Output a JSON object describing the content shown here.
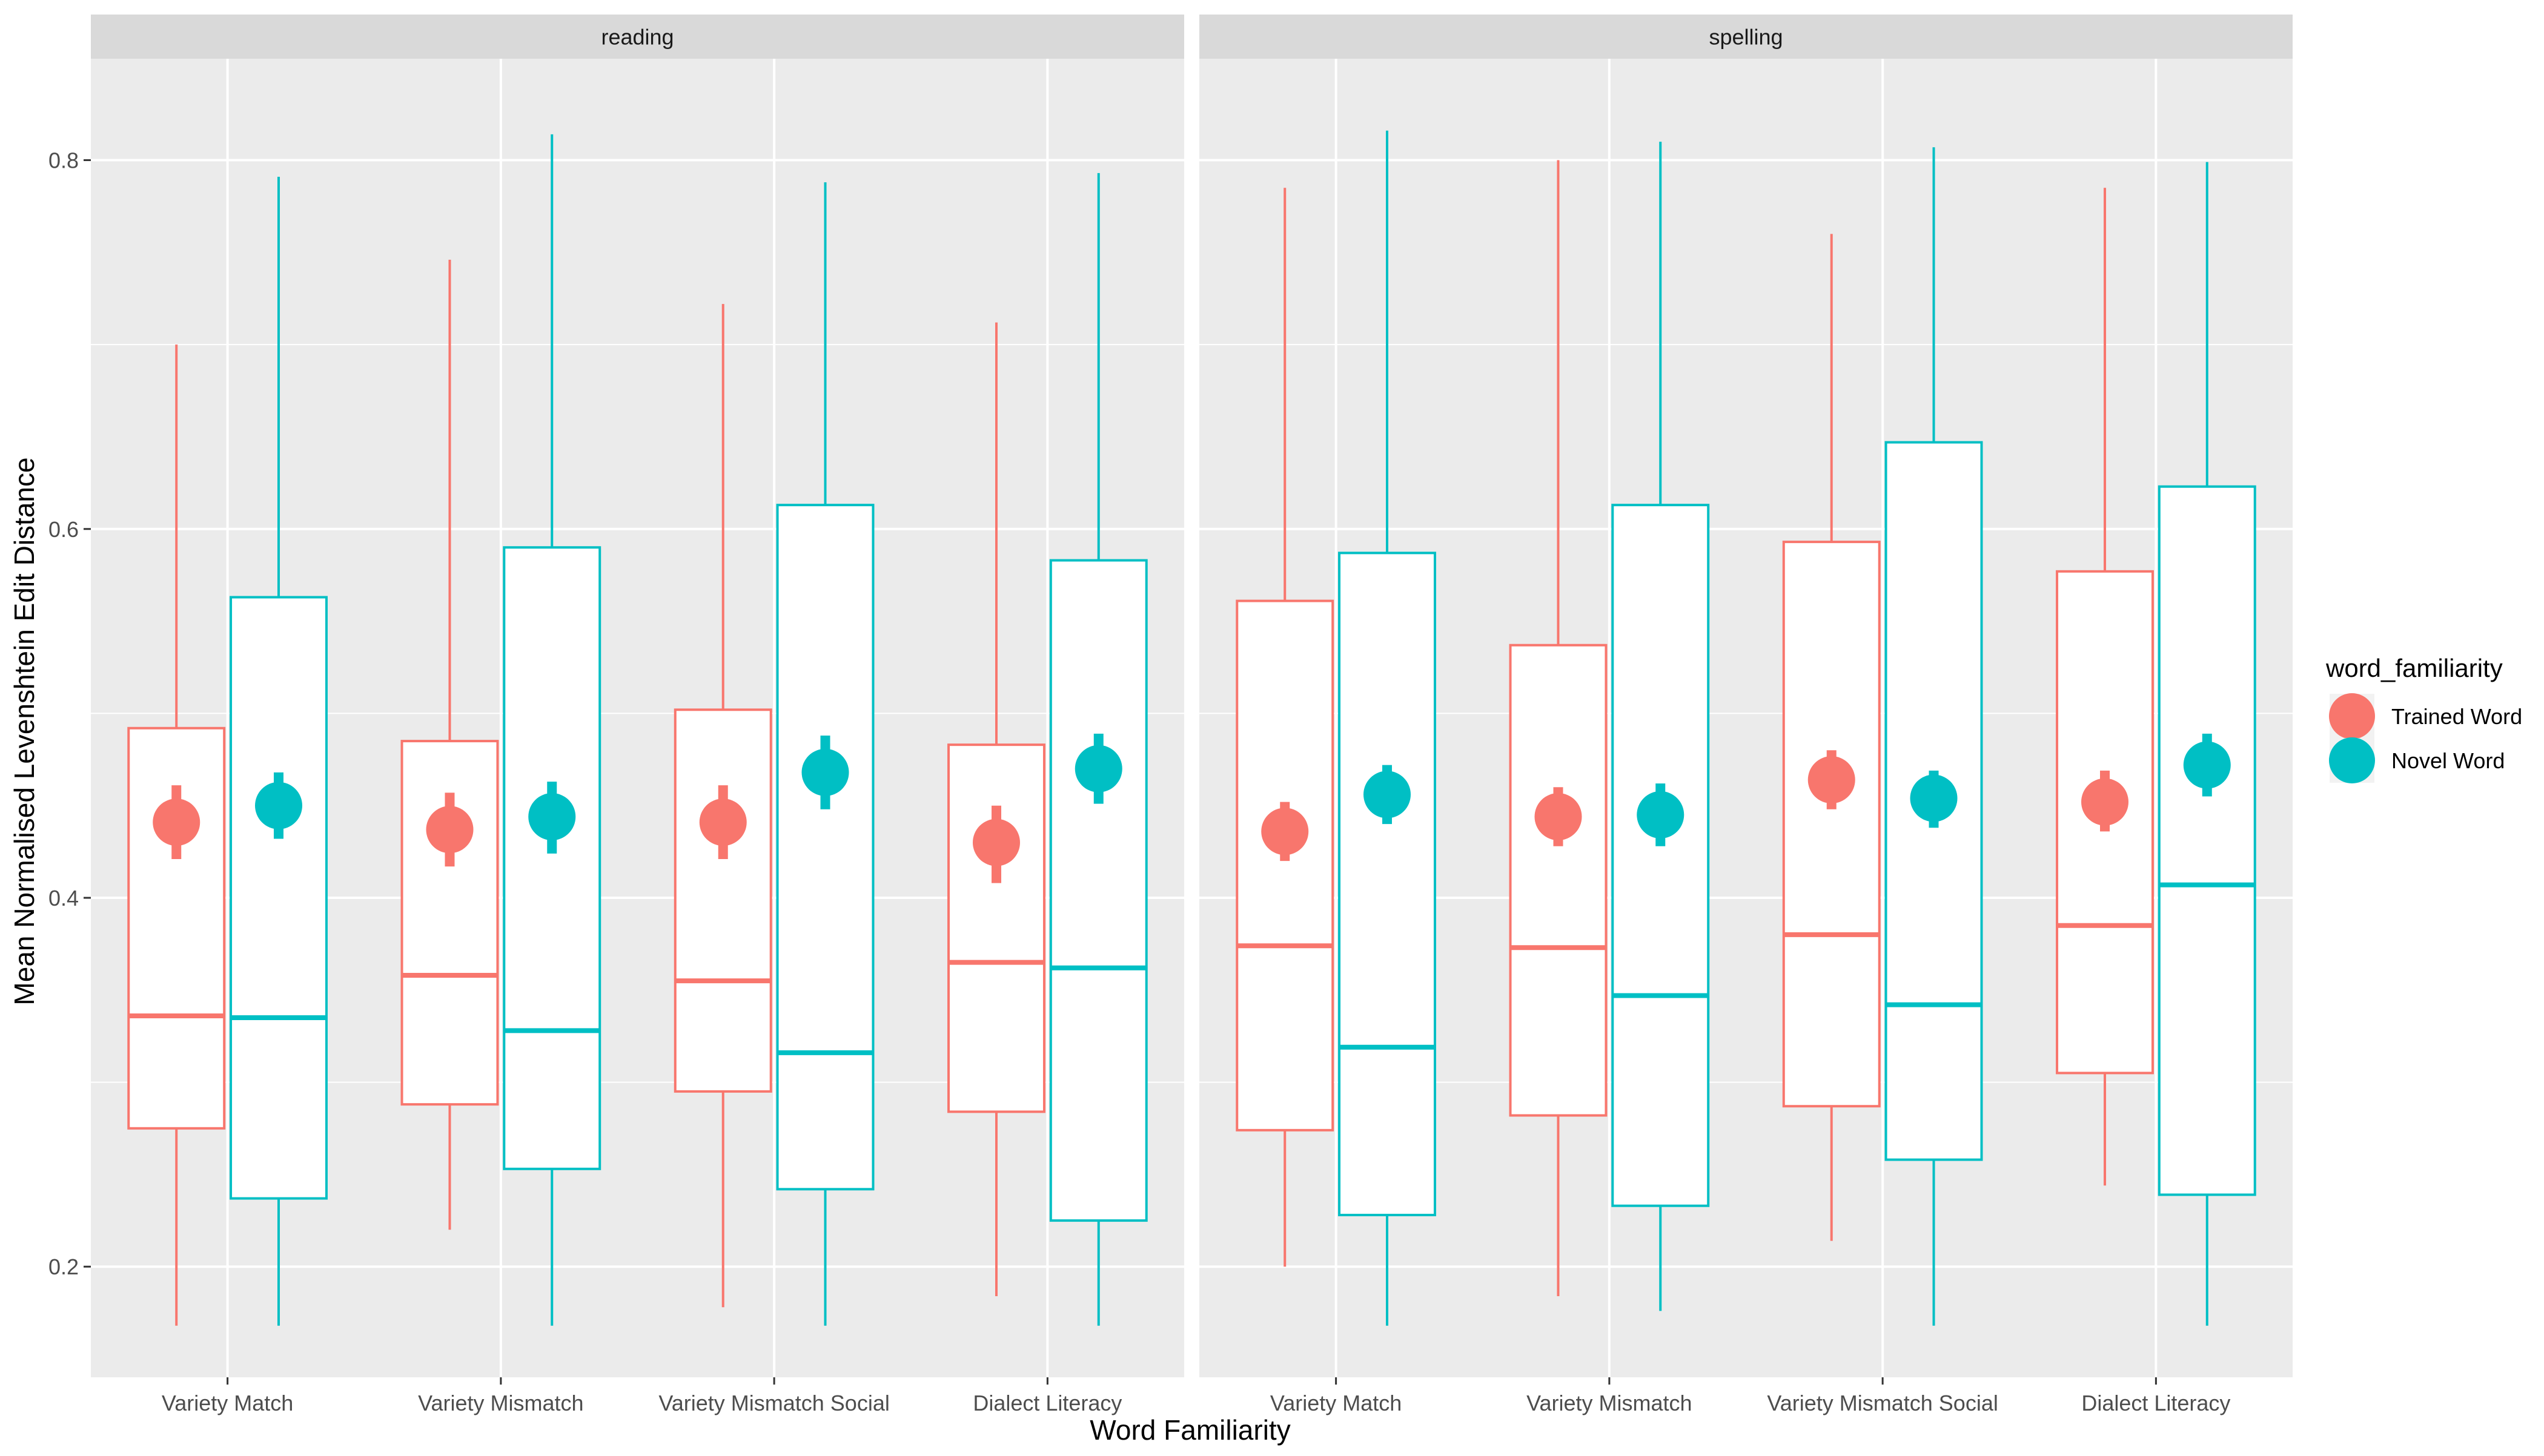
{
  "chart_data": {
    "type": "boxplot",
    "xlabel": "Word Familiarity",
    "ylabel": "Mean Normalised Levenshtein Edit Distance",
    "ylim": [
      0.14,
      0.855
    ],
    "yticks": [
      0.2,
      0.4,
      0.6,
      0.8
    ],
    "ytick_labels": [
      "0.2",
      "0.4",
      "0.6",
      "0.8"
    ],
    "grid": true,
    "facets": [
      "reading",
      "spelling"
    ],
    "categories": [
      "Variety Match",
      "Variety Mismatch",
      "Variety Mismatch Social",
      "Dialect Literacy"
    ],
    "legend": {
      "title": "word_familiarity",
      "position": "right",
      "entries": [
        {
          "name": "Trained Word",
          "color": "#F8766D"
        },
        {
          "name": "Novel Word",
          "color": "#00BFC4"
        }
      ]
    },
    "series": [
      {
        "name": "Trained Word",
        "color": "#F8766D",
        "panels": [
          {
            "facet": "reading",
            "boxes": [
              {
                "min": 0.168,
                "q1": 0.275,
                "median": 0.336,
                "q3": 0.492,
                "max": 0.7
              },
              {
                "min": 0.22,
                "q1": 0.288,
                "median": 0.358,
                "q3": 0.485,
                "max": 0.746
              },
              {
                "min": 0.178,
                "q1": 0.295,
                "median": 0.355,
                "q3": 0.502,
                "max": 0.722
              },
              {
                "min": 0.184,
                "q1": 0.284,
                "median": 0.365,
                "q3": 0.483,
                "max": 0.712
              }
            ],
            "means": [
              {
                "mean": 0.441,
                "lower": 0.421,
                "upper": 0.461
              },
              {
                "mean": 0.437,
                "lower": 0.417,
                "upper": 0.457
              },
              {
                "mean": 0.441,
                "lower": 0.421,
                "upper": 0.461
              },
              {
                "mean": 0.43,
                "lower": 0.408,
                "upper": 0.45
              }
            ]
          },
          {
            "facet": "spelling",
            "boxes": [
              {
                "min": 0.2,
                "q1": 0.274,
                "median": 0.374,
                "q3": 0.561,
                "max": 0.785
              },
              {
                "min": 0.184,
                "q1": 0.282,
                "median": 0.373,
                "q3": 0.537,
                "max": 0.8
              },
              {
                "min": 0.214,
                "q1": 0.287,
                "median": 0.38,
                "q3": 0.593,
                "max": 0.76
              },
              {
                "min": 0.244,
                "q1": 0.305,
                "median": 0.385,
                "q3": 0.577,
                "max": 0.785
              }
            ],
            "means": [
              {
                "mean": 0.436,
                "lower": 0.42,
                "upper": 0.452
              },
              {
                "mean": 0.444,
                "lower": 0.428,
                "upper": 0.46
              },
              {
                "mean": 0.464,
                "lower": 0.448,
                "upper": 0.48
              },
              {
                "mean": 0.452,
                "lower": 0.436,
                "upper": 0.469
              }
            ]
          }
        ]
      },
      {
        "name": "Novel Word",
        "color": "#00BFC4",
        "panels": [
          {
            "facet": "reading",
            "boxes": [
              {
                "min": 0.168,
                "q1": 0.237,
                "median": 0.335,
                "q3": 0.563,
                "max": 0.791
              },
              {
                "min": 0.168,
                "q1": 0.253,
                "median": 0.328,
                "q3": 0.59,
                "max": 0.814
              },
              {
                "min": 0.168,
                "q1": 0.242,
                "median": 0.316,
                "q3": 0.613,
                "max": 0.788
              },
              {
                "min": 0.168,
                "q1": 0.225,
                "median": 0.362,
                "q3": 0.583,
                "max": 0.793
              }
            ],
            "means": [
              {
                "mean": 0.45,
                "lower": 0.432,
                "upper": 0.468
              },
              {
                "mean": 0.444,
                "lower": 0.424,
                "upper": 0.463
              },
              {
                "mean": 0.468,
                "lower": 0.448,
                "upper": 0.488
              },
              {
                "mean": 0.47,
                "lower": 0.451,
                "upper": 0.489
              }
            ]
          },
          {
            "facet": "spelling",
            "boxes": [
              {
                "min": 0.168,
                "q1": 0.228,
                "median": 0.319,
                "q3": 0.587,
                "max": 0.816
              },
              {
                "min": 0.176,
                "q1": 0.233,
                "median": 0.347,
                "q3": 0.613,
                "max": 0.81
              },
              {
                "min": 0.168,
                "q1": 0.258,
                "median": 0.342,
                "q3": 0.647,
                "max": 0.807
              },
              {
                "min": 0.168,
                "q1": 0.239,
                "median": 0.407,
                "q3": 0.623,
                "max": 0.799
              }
            ],
            "means": [
              {
                "mean": 0.456,
                "lower": 0.44,
                "upper": 0.472
              },
              {
                "mean": 0.445,
                "lower": 0.428,
                "upper": 0.462
              },
              {
                "mean": 0.454,
                "lower": 0.438,
                "upper": 0.469
              },
              {
                "mean": 0.472,
                "lower": 0.455,
                "upper": 0.489
              }
            ]
          }
        ]
      }
    ]
  }
}
